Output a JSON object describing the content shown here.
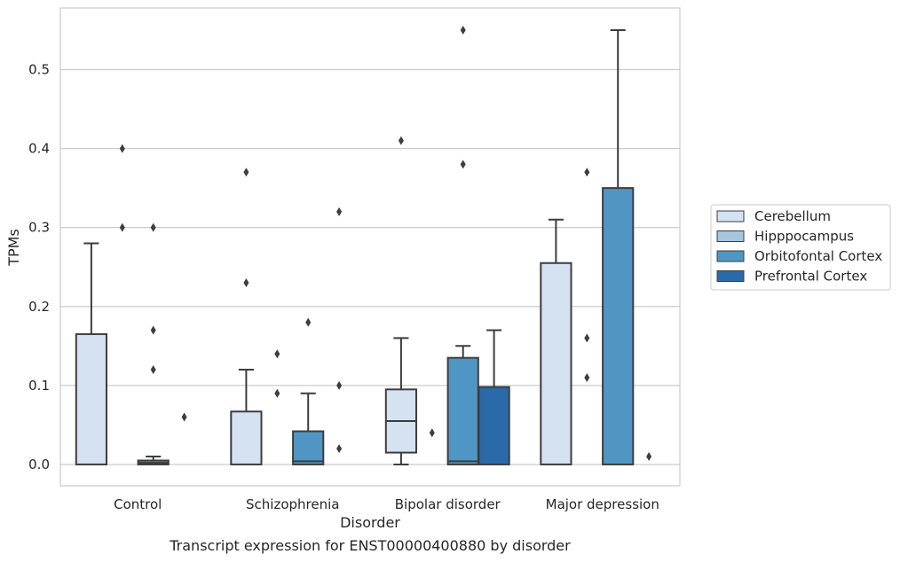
{
  "caption": "Transcript expression for ENST00000400880 by disorder",
  "chart_data": {
    "type": "box",
    "title": "",
    "xlabel": "Disorder",
    "ylabel": "TPMs",
    "ylim": [
      -0.027,
      0.578
    ],
    "yticks": [
      0.0,
      0.1,
      0.2,
      0.3,
      0.4,
      0.5
    ],
    "ytick_labels": [
      "0.0",
      "0.1",
      "0.2",
      "0.3",
      "0.4",
      "0.5"
    ],
    "grid": "horizontal",
    "legend_position": "right",
    "categories": [
      "Control",
      "Schizophrenia",
      "Bipolar disorder",
      "Major depression"
    ],
    "series": [
      {
        "name": "Cerebellum",
        "color": "#d4e2f1",
        "boxes": [
          {
            "whislo": 0.0,
            "q1": 0.0,
            "med": 0.0,
            "q3": 0.165,
            "whishi": 0.28,
            "fliers": []
          },
          {
            "whislo": 0.0,
            "q1": 0.0,
            "med": 0.0,
            "q3": 0.067,
            "whishi": 0.12,
            "fliers": [
              0.37,
              0.23
            ]
          },
          {
            "whislo": 0.0,
            "q1": 0.015,
            "med": 0.055,
            "q3": 0.095,
            "whishi": 0.16,
            "fliers": [
              0.41
            ]
          },
          {
            "whislo": 0.0,
            "q1": 0.0,
            "med": 0.0,
            "q3": 0.255,
            "whishi": 0.31,
            "fliers": []
          }
        ]
      },
      {
        "name": "Hipppocampus",
        "color": "#a6c6df",
        "boxes": [
          {
            "whislo": 0.0,
            "q1": 0.0,
            "med": 0.0,
            "q3": 0.0,
            "whishi": 0.0,
            "fliers": [
              0.4,
              0.3
            ]
          },
          {
            "whislo": 0.0,
            "q1": 0.0,
            "med": 0.0,
            "q3": 0.0,
            "whishi": 0.0,
            "fliers": [
              0.14,
              0.09
            ]
          },
          {
            "whislo": 0.0,
            "q1": 0.0,
            "med": 0.0,
            "q3": 0.0,
            "whishi": 0.0,
            "fliers": [
              0.04
            ]
          },
          {
            "whislo": 0.0,
            "q1": 0.0,
            "med": 0.0,
            "q3": 0.0,
            "whishi": 0.0,
            "fliers": [
              0.37,
              0.16,
              0.11
            ]
          }
        ]
      },
      {
        "name": "Orbitofontal Cortex",
        "color": "#5096c5",
        "boxes": [
          {
            "whislo": 0.0,
            "q1": 0.0,
            "med": 0.002,
            "q3": 0.005,
            "whishi": 0.01,
            "fliers": [
              0.3,
              0.17,
              0.12
            ]
          },
          {
            "whislo": 0.0,
            "q1": 0.0,
            "med": 0.004,
            "q3": 0.042,
            "whishi": 0.09,
            "fliers": [
              0.18
            ]
          },
          {
            "whislo": 0.0,
            "q1": 0.0,
            "med": 0.004,
            "q3": 0.135,
            "whishi": 0.15,
            "fliers": [
              0.55,
              0.38
            ]
          },
          {
            "whislo": 0.0,
            "q1": 0.0,
            "med": 0.0,
            "q3": 0.35,
            "whishi": 0.55,
            "fliers": []
          }
        ]
      },
      {
        "name": "Prefrontal Cortex",
        "color": "#2b6aa8",
        "boxes": [
          {
            "whislo": 0.0,
            "q1": 0.0,
            "med": 0.0,
            "q3": 0.0,
            "whishi": 0.0,
            "fliers": [
              0.06
            ]
          },
          {
            "whislo": 0.0,
            "q1": 0.0,
            "med": 0.0,
            "q3": 0.0,
            "whishi": 0.0,
            "fliers": [
              0.32,
              0.1,
              0.02
            ]
          },
          {
            "whislo": 0.0,
            "q1": 0.0,
            "med": 0.0,
            "q3": 0.098,
            "whishi": 0.17,
            "fliers": []
          },
          {
            "whislo": 0.0,
            "q1": 0.0,
            "med": 0.0,
            "q3": 0.0,
            "whishi": 0.0,
            "fliers": [
              0.01
            ]
          }
        ]
      }
    ]
  }
}
